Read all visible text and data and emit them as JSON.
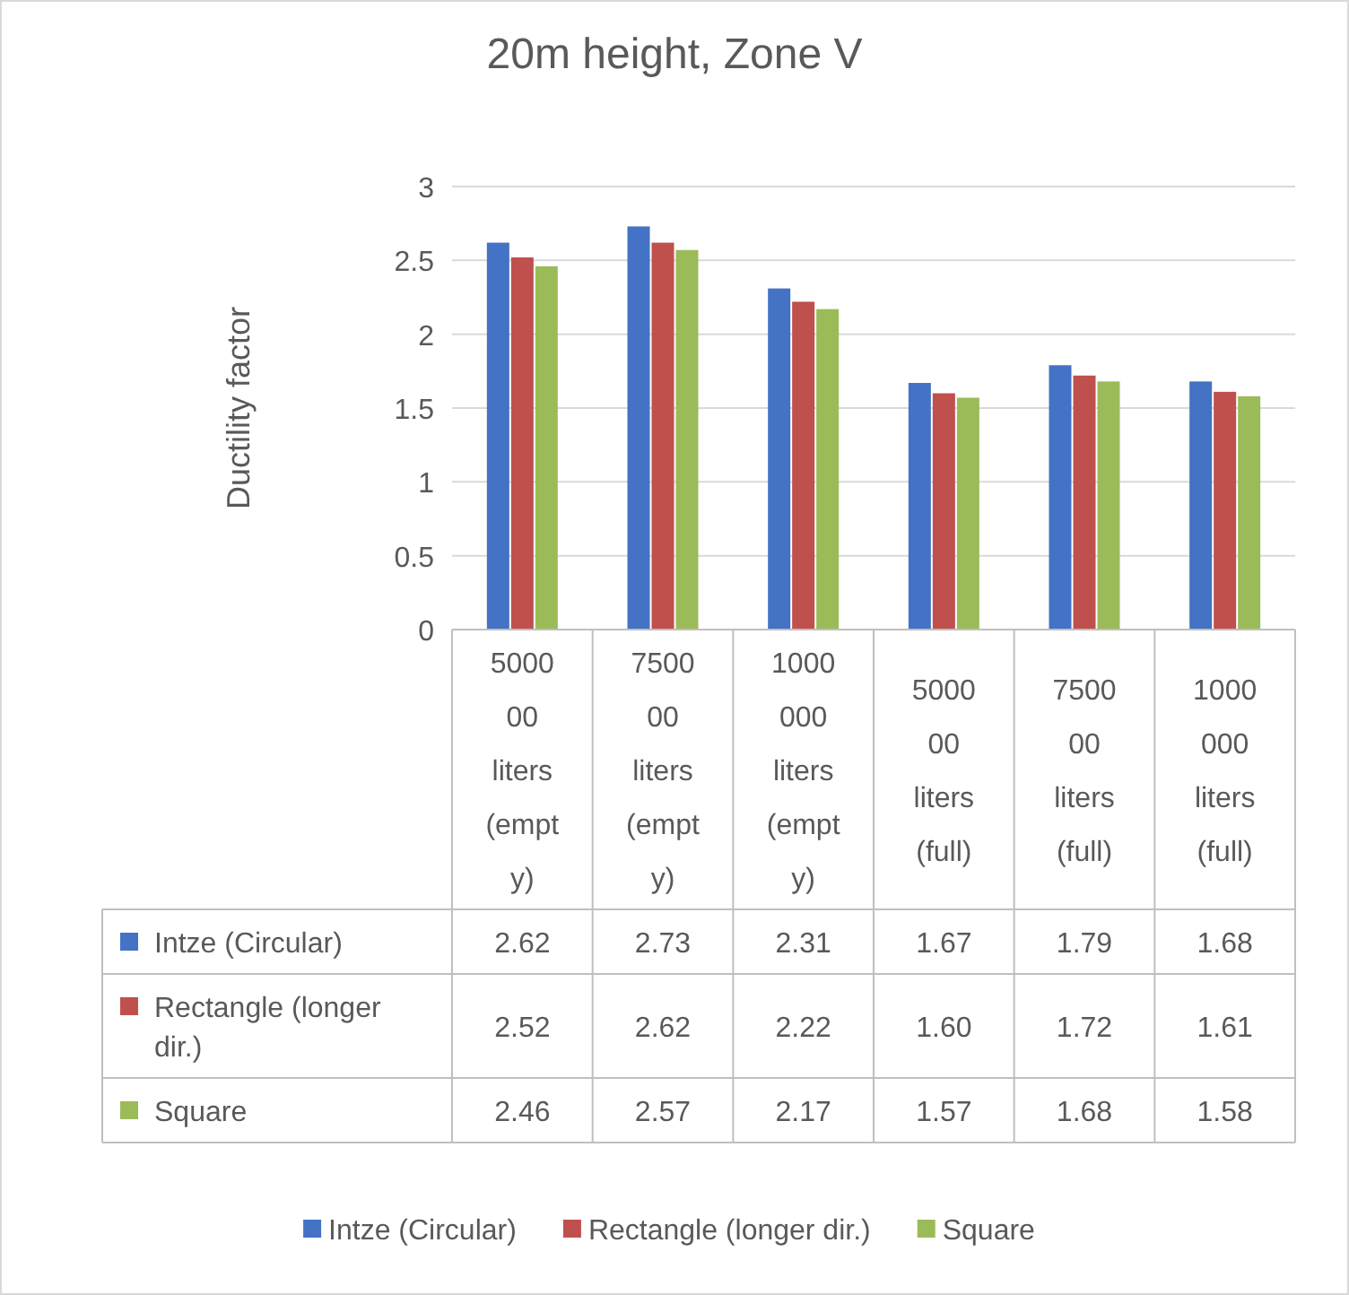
{
  "chart_data": {
    "type": "bar",
    "title": "20m height, Zone V",
    "ylabel": "Ductility factor",
    "categories": [
      "500000 liters (empty)",
      "750000 liters (empty)",
      "1000000 liters (empty)",
      "500000 liters (full)",
      "750000 liters (full)",
      "1000000 liters (full)"
    ],
    "series": [
      {
        "name": "Intze (Circular)",
        "color": "#4472c4",
        "values": [
          2.62,
          2.73,
          2.31,
          1.67,
          1.79,
          1.68
        ],
        "value_labels": [
          "2.62",
          "2.73",
          "2.31",
          "1.67",
          "1.79",
          "1.68"
        ]
      },
      {
        "name": "Rectangle (longer dir.)",
        "color": "#c0504d",
        "values": [
          2.52,
          2.62,
          2.22,
          1.6,
          1.72,
          1.61
        ],
        "value_labels": [
          "2.52",
          "2.62",
          "2.22",
          "1.60",
          "1.72",
          "1.61"
        ]
      },
      {
        "name": "Square",
        "color": "#9bbb59",
        "values": [
          2.46,
          2.57,
          2.17,
          1.57,
          1.68,
          1.58
        ],
        "value_labels": [
          "2.46",
          "2.57",
          "2.17",
          "1.57",
          "1.68",
          "1.58"
        ]
      }
    ],
    "ylim": [
      0,
      3
    ],
    "yticks": [
      0,
      0.5,
      1,
      1.5,
      2,
      2.5,
      3
    ],
    "grid": "y",
    "legend": "bottom"
  }
}
